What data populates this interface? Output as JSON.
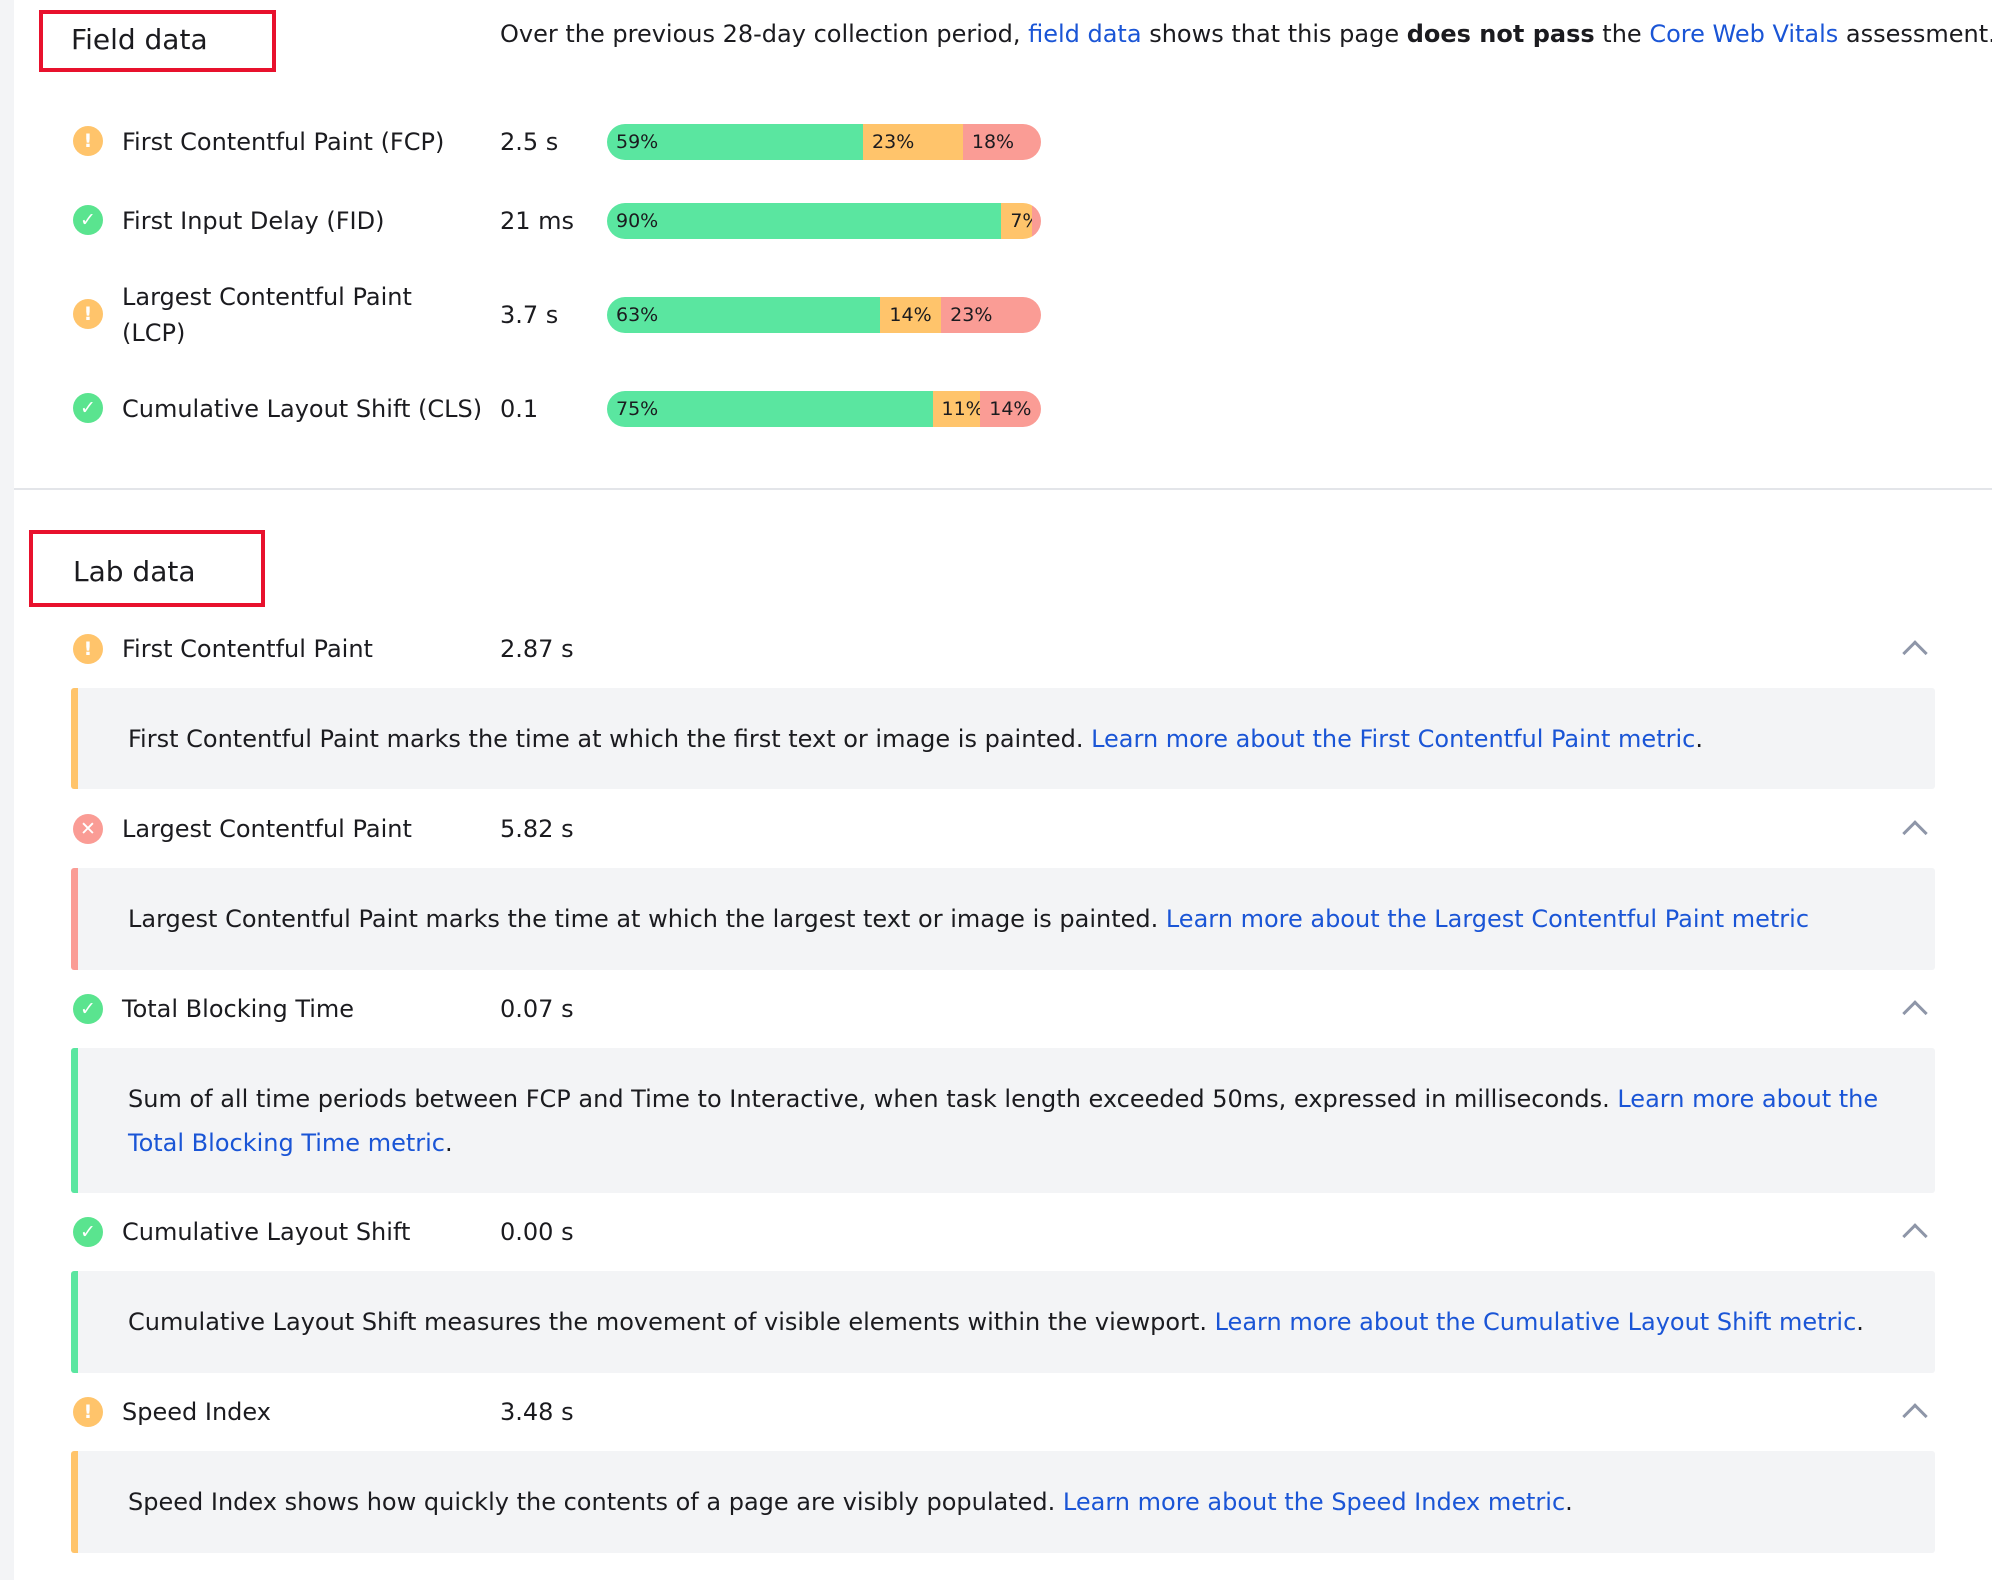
{
  "field_data": {
    "title": "Field data",
    "summary": {
      "part1": "Over the previous 28-day collection period, ",
      "link1": "field data",
      "part2": " shows that this page ",
      "bold": "does not pass",
      "part3": " the ",
      "link2": "Core Web Vitals",
      "part4": " assessment."
    },
    "metrics": [
      {
        "name": "First Contentful Paint (FCP)",
        "value": "2.5 s",
        "status": "average",
        "status_icon": "exclamation-icon",
        "distribution": [
          {
            "label": "59%",
            "pct": 59
          },
          {
            "label": "23%",
            "pct": 23
          },
          {
            "label": "18%",
            "pct": 18
          }
        ]
      },
      {
        "name": "First Input Delay (FID)",
        "value": "21 ms",
        "status": "good",
        "status_icon": "check-icon",
        "distribution": [
          {
            "label": "90%",
            "pct": 90
          },
          {
            "label": "7%",
            "pct": 7
          },
          {
            "label": "2%",
            "pct": 2
          }
        ]
      },
      {
        "name_line1": "Largest Contentful Paint",
        "name_line2": "(LCP)",
        "value": "3.7 s",
        "status": "average",
        "status_icon": "exclamation-icon",
        "distribution": [
          {
            "label": "63%",
            "pct": 63
          },
          {
            "label": "14%",
            "pct": 14
          },
          {
            "label": "23%",
            "pct": 23
          }
        ]
      },
      {
        "name": "Cumulative Layout Shift (CLS)",
        "value": "0.1",
        "status": "good",
        "status_icon": "check-icon",
        "distribution": [
          {
            "label": "75%",
            "pct": 75
          },
          {
            "label": "11%",
            "pct": 11
          },
          {
            "label": "14%",
            "pct": 14
          }
        ]
      }
    ]
  },
  "lab_data": {
    "title": "Lab data",
    "metrics": [
      {
        "name": "First Contentful Paint",
        "value": "2.87 s",
        "status": "average",
        "status_icon": "exclamation-icon",
        "description": "First Contentful Paint marks the time at which the first text or image is painted. ",
        "link": "Learn more about the First Contentful Paint metric",
        "trailing": "."
      },
      {
        "name": "Largest Contentful Paint",
        "value": "5.82 s",
        "status": "poor",
        "status_icon": "cross-icon",
        "description": "Largest Contentful Paint marks the time at which the largest text or image is painted. ",
        "link": "Learn more about the Largest Contentful Paint metric",
        "trailing": ""
      },
      {
        "name": "Total Blocking Time",
        "value": "0.07 s",
        "status": "good",
        "status_icon": "check-icon",
        "description": "Sum of all time periods between FCP and Time to Interactive, when task length exceeded 50ms, expressed in milliseconds. ",
        "link": "Learn more about the Total Blocking Time metric",
        "trailing": "."
      },
      {
        "name": "Cumulative Layout Shift",
        "value": "0.00 s",
        "status": "good",
        "status_icon": "check-icon",
        "description": "Cumulative Layout Shift measures the movement of visible elements within the viewport. ",
        "link": "Learn more about the Cumulative Layout Shift metric",
        "trailing": "."
      },
      {
        "name": "Speed Index",
        "value": "3.48 s",
        "status": "average",
        "status_icon": "exclamation-icon",
        "description": "Speed Index shows how quickly the contents of a page are visibly populated. ",
        "link": "Learn more about the Speed Index metric",
        "trailing": "."
      }
    ]
  },
  "colors": {
    "good": "#5ae6a0",
    "average": "#ffc46b",
    "poor": "#fa9c95",
    "link": "#1a55d6",
    "highlight_border": "#e8112d"
  }
}
